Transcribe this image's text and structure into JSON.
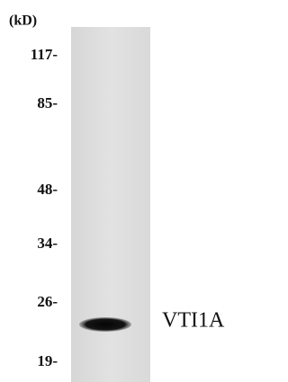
{
  "unit_label": "(kD)",
  "markers": [
    "117-",
    "85-",
    "48-",
    "34-",
    "26-",
    "19-"
  ],
  "band_label": "VTI1A"
}
